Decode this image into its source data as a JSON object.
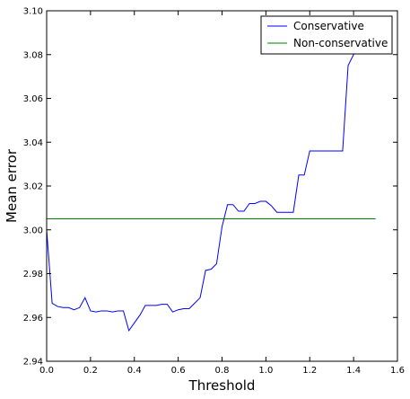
{
  "chart_data": {
    "type": "line",
    "xlabel": "Threshold",
    "ylabel": "Mean error",
    "xlim": [
      0.0,
      1.6
    ],
    "ylim": [
      2.94,
      3.1
    ],
    "xticks": [
      "0.0",
      "0.2",
      "0.4",
      "0.6",
      "0.8",
      "1.0",
      "1.2",
      "1.4",
      "1.6"
    ],
    "yticks": [
      "2.94",
      "2.96",
      "2.98",
      "3.00",
      "3.02",
      "3.04",
      "3.06",
      "3.08",
      "3.10"
    ],
    "grid": false,
    "legend_position": "top-right",
    "series": [
      {
        "name": "Conservative",
        "color": "#0000ff",
        "x": [
          0.0,
          0.025,
          0.05,
          0.075,
          0.1,
          0.125,
          0.15,
          0.175,
          0.2,
          0.225,
          0.25,
          0.275,
          0.3,
          0.325,
          0.35,
          0.375,
          0.4,
          0.425,
          0.45,
          0.475,
          0.5,
          0.525,
          0.55,
          0.575,
          0.6,
          0.625,
          0.65,
          0.675,
          0.7,
          0.725,
          0.75,
          0.775,
          0.8,
          0.825,
          0.85,
          0.875,
          0.9,
          0.925,
          0.95,
          0.975,
          1.0,
          1.025,
          1.05,
          1.075,
          1.1,
          1.125,
          1.15,
          1.175,
          1.2,
          1.225,
          1.25,
          1.275,
          1.3,
          1.325,
          1.35,
          1.375,
          1.4,
          1.415
        ],
        "values": [
          3.0,
          2.9665,
          2.965,
          2.9645,
          2.9645,
          2.9635,
          2.9645,
          2.969,
          2.963,
          2.9625,
          2.963,
          2.963,
          2.9625,
          2.963,
          2.963,
          2.954,
          2.9575,
          2.961,
          2.9655,
          2.9655,
          2.9655,
          2.966,
          2.966,
          2.9625,
          2.9635,
          2.964,
          2.964,
          2.9665,
          2.969,
          2.9815,
          2.982,
          2.9845,
          3.0015,
          3.0115,
          3.0115,
          3.0085,
          3.0085,
          3.012,
          3.012,
          3.013,
          3.013,
          3.011,
          3.008,
          3.008,
          3.008,
          3.008,
          3.025,
          3.025,
          3.036,
          3.036,
          3.036,
          3.036,
          3.036,
          3.036,
          3.036,
          3.075,
          3.08,
          3.082
        ]
      },
      {
        "name": "Non-conservative",
        "color": "#008000",
        "x": [
          0.0,
          1.5
        ],
        "values": [
          3.005,
          3.005
        ]
      }
    ]
  }
}
